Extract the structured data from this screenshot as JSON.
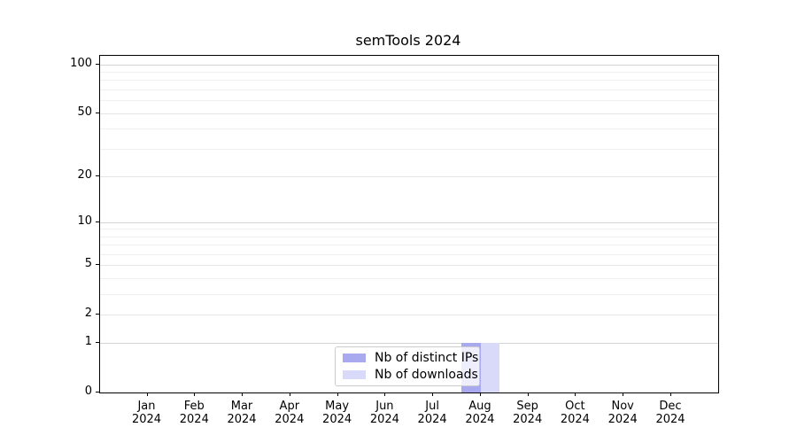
{
  "title": "semTools 2024",
  "legend": {
    "items": [
      {
        "label": "Nb of distinct IPs",
        "color": "#a9a9f0"
      },
      {
        "label": "Nb of downloads",
        "color": "#d9d9fa"
      }
    ]
  },
  "chart_data": {
    "type": "bar",
    "title": "semTools 2024",
    "categories": [
      "Jan 2024",
      "Feb 2024",
      "Mar 2024",
      "Apr 2024",
      "May 2024",
      "Jun 2024",
      "Jul 2024",
      "Aug 2024",
      "Sep 2024",
      "Oct 2024",
      "Nov 2024",
      "Dec 2024"
    ],
    "series": [
      {
        "name": "Nb of distinct IPs",
        "color": "#a9a9f0",
        "values": [
          0,
          0,
          0,
          0,
          0,
          0,
          0,
          1,
          0,
          0,
          0,
          0
        ]
      },
      {
        "name": "Nb of downloads",
        "color": "#d9d9fa",
        "values": [
          0,
          0,
          0,
          0,
          0,
          0,
          0,
          1,
          0,
          0,
          0,
          0
        ]
      }
    ],
    "xlabel": "",
    "ylabel": "",
    "yscale": "log1p",
    "ylim": [
      0,
      112
    ],
    "y_ticks": [
      0,
      1,
      2,
      5,
      10,
      20,
      50,
      100
    ],
    "y_minor_ticks": [
      3,
      4,
      6,
      7,
      8,
      9,
      30,
      40,
      60,
      70,
      80,
      90
    ],
    "grid": "horizontal",
    "legend_position": "bottom-center"
  }
}
